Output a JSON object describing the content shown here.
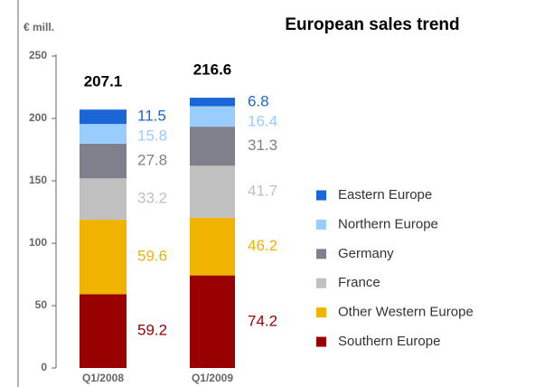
{
  "chart_data": {
    "type": "stacked_bar",
    "title": "European sales trend",
    "y_label": "€ mill.",
    "categories": [
      "Q1/2008",
      "Q1/2009"
    ],
    "series": [
      {
        "name": "Southern Europe",
        "color": "#990000",
        "values": [
          59.2,
          74.2
        ]
      },
      {
        "name": "Other Western Europe",
        "color": "#f0b400",
        "values": [
          59.6,
          46.2
        ]
      },
      {
        "name": "France",
        "color": "#c0c0c0",
        "values": [
          33.2,
          41.7
        ]
      },
      {
        "name": "Germany",
        "color": "#80808c",
        "values": [
          27.8,
          31.3
        ]
      },
      {
        "name": "Northern Europe",
        "color": "#99ccff",
        "values": [
          15.8,
          16.4
        ]
      },
      {
        "name": "Eastern Europe",
        "color": "#1a66d6",
        "values": [
          11.5,
          6.8
        ]
      }
    ],
    "totals": [
      207.1,
      216.6
    ],
    "ylim": [
      0,
      250
    ],
    "yticks": [
      0,
      50,
      100,
      150,
      200,
      250
    ]
  }
}
